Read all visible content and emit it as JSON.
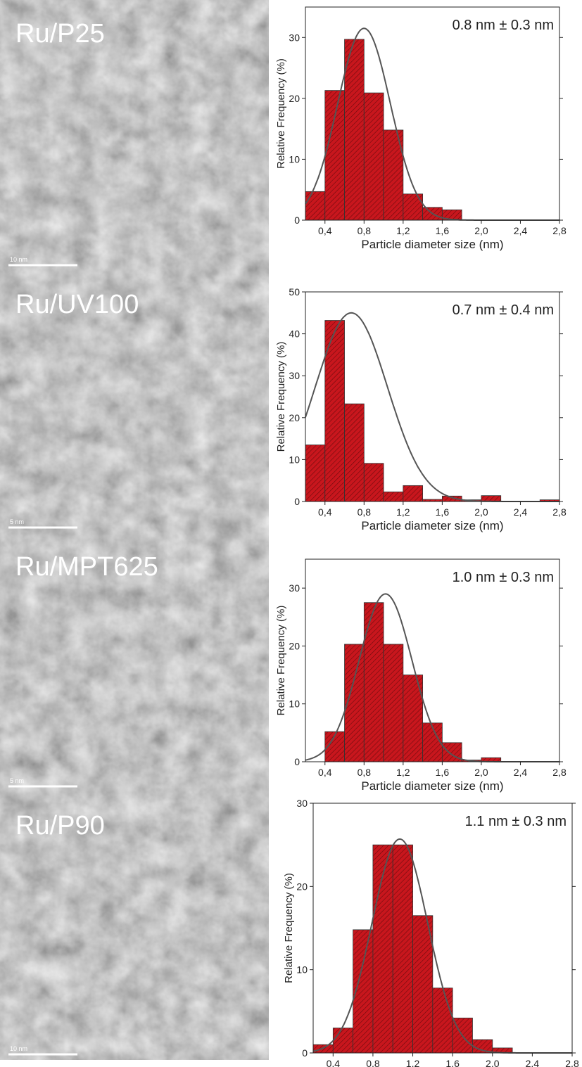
{
  "chart_data": [
    {
      "type": "histogram",
      "image_label": "Ru/P25",
      "scale_bar": "10 nm",
      "annotation": "0.8 nm ± 0.3 nm",
      "xlabel": "Particle diameter size (nm)",
      "ylabel": "Relative Frequency (%)",
      "color": "#c8161d",
      "bins": [
        0.2,
        0.4,
        0.6,
        0.8,
        1.0,
        1.2,
        1.4,
        1.6,
        1.8
      ],
      "values": [
        4.7,
        21.3,
        29.7,
        20.9,
        14.8,
        4.3,
        2.1,
        1.7
      ],
      "fit": {
        "center": 0.8,
        "width": 0.27,
        "amplitude": 31.5
      },
      "xlim": [
        0.2,
        2.8
      ],
      "ylim": [
        0,
        35
      ],
      "xticks": [
        {
          "value": 0.4,
          "label": "0,4"
        },
        {
          "value": 0.8,
          "label": "0,8"
        },
        {
          "value": 1.2,
          "label": "1,2"
        },
        {
          "value": 1.6,
          "label": "1,6"
        },
        {
          "value": 2.0,
          "label": "2,0"
        },
        {
          "value": 2.4,
          "label": "2,4"
        },
        {
          "value": 2.8,
          "label": "2,8"
        }
      ],
      "yticks": [
        0,
        10,
        20,
        30
      ]
    },
    {
      "type": "histogram",
      "image_label": "Ru/UV100",
      "scale_bar": "5 nm",
      "annotation": "0.7 nm ± 0.4 nm",
      "xlabel": "Particle diameter size (nm)",
      "ylabel": "Relative Frequency (%)",
      "color": "#c8161d",
      "bins": [
        0.2,
        0.4,
        0.6,
        0.8,
        1.0,
        1.2,
        1.4,
        1.6,
        1.8,
        2.0,
        2.2,
        2.4,
        2.6,
        2.8
      ],
      "values": [
        13.5,
        43.2,
        23.3,
        9.1,
        2.3,
        3.8,
        0.5,
        1.3,
        0.4,
        1.4,
        0,
        0,
        0.4
      ],
      "fit": {
        "center": 0.67,
        "width": 0.37,
        "amplitude": 45
      },
      "xlim": [
        0.2,
        2.8
      ],
      "ylim": [
        0,
        50
      ],
      "xticks": [
        {
          "value": 0.4,
          "label": "0,4"
        },
        {
          "value": 0.8,
          "label": "0,8"
        },
        {
          "value": 1.2,
          "label": "1,2"
        },
        {
          "value": 1.6,
          "label": "1,6"
        },
        {
          "value": 2.0,
          "label": "2,0"
        },
        {
          "value": 2.4,
          "label": "2,4"
        },
        {
          "value": 2.8,
          "label": "2,8"
        }
      ],
      "yticks": [
        0,
        10,
        20,
        30,
        40,
        50
      ]
    },
    {
      "type": "histogram",
      "image_label": "Ru/MPT625",
      "scale_bar": "5 nm",
      "annotation": "1.0 nm ± 0.3 nm",
      "xlabel": "Particle diameter size (nm)",
      "ylabel": "Relative Frequency (%)",
      "color": "#c8161d",
      "bins": [
        0.4,
        0.6,
        0.8,
        1.0,
        1.2,
        1.4,
        1.6,
        1.8,
        2.0,
        2.2
      ],
      "values": [
        5.2,
        20.3,
        27.5,
        20.3,
        15.0,
        6.7,
        3.3,
        0.3,
        0.7
      ],
      "fit": {
        "center": 1.02,
        "width": 0.27,
        "amplitude": 29
      },
      "xlim": [
        0.2,
        2.8
      ],
      "ylim": [
        0,
        35
      ],
      "xticks": [
        {
          "value": 0.4,
          "label": "0,4"
        },
        {
          "value": 0.8,
          "label": "0,8"
        },
        {
          "value": 1.2,
          "label": "1,2"
        },
        {
          "value": 1.6,
          "label": "1,6"
        },
        {
          "value": 2.0,
          "label": "2,0"
        },
        {
          "value": 2.4,
          "label": "2,4"
        },
        {
          "value": 2.8,
          "label": "2,8"
        }
      ],
      "yticks": [
        0,
        10,
        20,
        30
      ]
    },
    {
      "type": "histogram",
      "image_label": "Ru/P90",
      "scale_bar": "10 nm",
      "annotation": "1.1 nm ± 0.3 nm",
      "xlabel": "Particle diameter size (nm)",
      "ylabel": "Relative Frequency (%)",
      "color": "#c8161d",
      "bins": [
        0.2,
        0.4,
        0.6,
        0.8,
        1.0,
        1.2,
        1.4,
        1.6,
        1.8,
        2.0,
        2.2
      ],
      "values": [
        1.0,
        3.0,
        14.8,
        25.0,
        25.0,
        16.5,
        7.8,
        4.2,
        1.6,
        0.6
      ],
      "fit": {
        "center": 1.07,
        "width": 0.28,
        "amplitude": 25.7
      },
      "xlim": [
        0.2,
        2.8
      ],
      "ylim": [
        0,
        30
      ],
      "xticks": [
        {
          "value": 0.4,
          "label": "0,4"
        },
        {
          "value": 0.8,
          "label": "0,8"
        },
        {
          "value": 1.2,
          "label": "1,2"
        },
        {
          "value": 1.6,
          "label": "1,6"
        },
        {
          "value": 2.0,
          "label": "2,0"
        },
        {
          "value": 2.4,
          "label": "2,4"
        },
        {
          "value": 2.8,
          "label": "2,8"
        }
      ],
      "yticks": [
        0,
        10,
        20,
        30
      ]
    }
  ]
}
